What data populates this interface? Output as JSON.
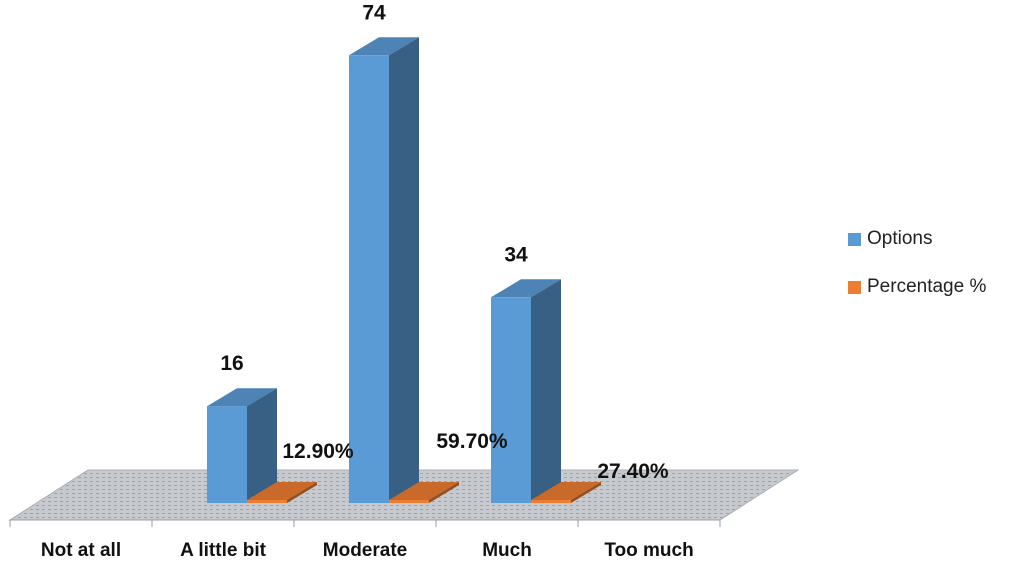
{
  "chart_data": {
    "type": "bar",
    "categories": [
      "Not at all",
      "A little bit",
      "Moderate",
      "Much",
      "Too much"
    ],
    "series": [
      {
        "name": "Options",
        "values": [
          null,
          16,
          74,
          34,
          null
        ],
        "labels": [
          "",
          "16",
          "74",
          "34",
          ""
        ],
        "color": "#5B9BD5"
      },
      {
        "name": "Percentage %",
        "values": [
          null,
          12.9,
          59.7,
          27.4,
          null
        ],
        "labels": [
          "",
          "12.90%",
          "59.70%",
          "27.40%",
          ""
        ],
        "color": "#ED7D31"
      }
    ],
    "legend_position": "right",
    "floor_pattern": "dotted gray",
    "title": "",
    "xlabel": "",
    "ylabel": ""
  }
}
